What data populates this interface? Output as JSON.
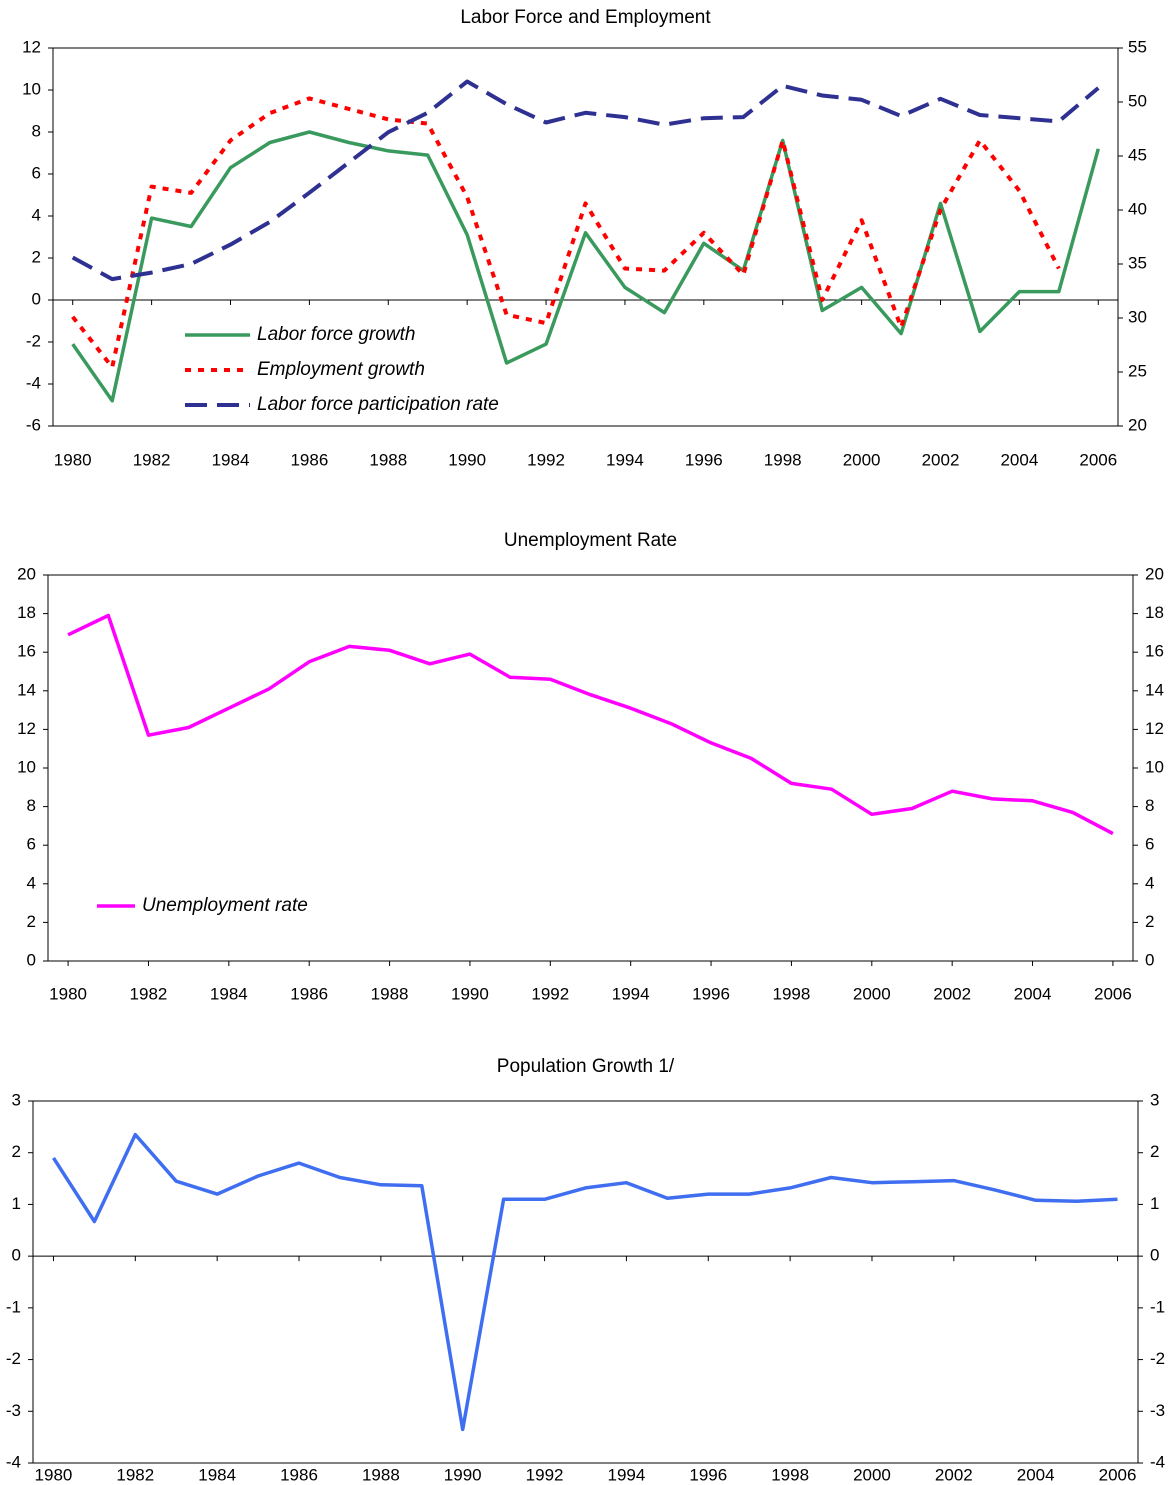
{
  "chart_data": [
    {
      "type": "line",
      "title": "Labor Force and Employment",
      "x": [
        1980,
        1981,
        1982,
        1983,
        1984,
        1985,
        1986,
        1987,
        1988,
        1989,
        1990,
        1991,
        1992,
        1993,
        1994,
        1995,
        1996,
        1997,
        1998,
        1999,
        2000,
        2001,
        2002,
        2003,
        2004,
        2005,
        2006
      ],
      "xlim": [
        1979.5,
        2006.5
      ],
      "xticks": [
        1980,
        1982,
        1984,
        1986,
        1988,
        1990,
        1992,
        1994,
        1996,
        1998,
        2000,
        2002,
        2004,
        2006
      ],
      "ylim": [
        -6,
        12
      ],
      "yticks": [
        -6,
        -4,
        -2,
        0,
        2,
        4,
        6,
        8,
        10,
        12
      ],
      "y2lim": [
        20,
        55
      ],
      "y2ticks": [
        20,
        25,
        30,
        35,
        40,
        45,
        50,
        55
      ],
      "legend": "lower left",
      "series": [
        {
          "name": "Labor force growth",
          "color": "#3a9a5e",
          "style": "solid",
          "values": [
            -2.1,
            -4.8,
            3.9,
            3.5,
            6.3,
            7.5,
            8.0,
            7.5,
            7.1,
            6.9,
            3.1,
            -3.0,
            -2.1,
            3.2,
            0.6,
            -0.6,
            2.7,
            1.4,
            7.6,
            -0.5,
            0.6,
            -1.6,
            4.6,
            -1.5,
            0.4,
            0.4,
            7.2
          ]
        },
        {
          "name": "Employment growth",
          "color": "#ff0000",
          "style": "dotted",
          "values": [
            -0.8,
            -3.2,
            5.4,
            5.1,
            7.6,
            8.9,
            9.6,
            9.1,
            8.6,
            8.4,
            4.9,
            -0.7,
            -1.1,
            4.6,
            1.5,
            1.4,
            3.2,
            1.2,
            7.6,
            0.0,
            3.8,
            -1.3,
            4.3,
            7.6,
            5.2,
            1.5,
            null
          ]
        },
        {
          "name": "Labor force participation rate",
          "color": "#2e3192",
          "style": "dashed",
          "axis": "y2",
          "values": [
            35.6,
            33.6,
            34.2,
            35.0,
            36.8,
            38.9,
            41.6,
            44.4,
            47.2,
            49.0,
            51.9,
            49.8,
            48.1,
            49.0,
            48.6,
            47.9,
            48.5,
            48.6,
            51.5,
            50.6,
            50.2,
            48.7,
            50.3,
            48.8,
            48.5,
            48.2,
            51.3
          ]
        }
      ]
    },
    {
      "type": "line",
      "title": "Unemployment Rate",
      "x": [
        1980,
        1981,
        1982,
        1983,
        1984,
        1985,
        1986,
        1987,
        1988,
        1989,
        1990,
        1991,
        1992,
        1993,
        1994,
        1995,
        1996,
        1997,
        1998,
        1999,
        2000,
        2001,
        2002,
        2003,
        2004,
        2005,
        2006
      ],
      "xlim": [
        1979.5,
        2006.5
      ],
      "xticks": [
        1980,
        1982,
        1984,
        1986,
        1988,
        1990,
        1992,
        1994,
        1996,
        1998,
        2000,
        2002,
        2004,
        2006
      ],
      "ylim": [
        0,
        20
      ],
      "yticks": [
        0,
        2,
        4,
        6,
        8,
        10,
        12,
        14,
        16,
        18,
        20
      ],
      "mirror_y": true,
      "legend": "lower left",
      "series": [
        {
          "name": "Unemployment rate",
          "color": "#ff00ff",
          "style": "solid",
          "values": [
            16.9,
            17.9,
            11.7,
            12.1,
            13.1,
            14.1,
            15.5,
            16.3,
            16.1,
            15.4,
            15.9,
            14.7,
            14.6,
            13.8,
            13.1,
            12.3,
            11.3,
            10.5,
            9.2,
            8.9,
            7.6,
            7.9,
            8.8,
            8.4,
            8.3,
            7.7,
            6.6
          ]
        }
      ]
    },
    {
      "type": "line",
      "title": "Population Growth 1/",
      "x": [
        1980,
        1981,
        1982,
        1983,
        1984,
        1985,
        1986,
        1987,
        1988,
        1989,
        1990,
        1991,
        1992,
        1993,
        1994,
        1995,
        1996,
        1997,
        1998,
        1999,
        2000,
        2001,
        2002,
        2003,
        2004,
        2005,
        2006
      ],
      "xlim": [
        1979.5,
        2006.5
      ],
      "xticks": [
        1980,
        1982,
        1984,
        1986,
        1988,
        1990,
        1992,
        1994,
        1996,
        1998,
        2000,
        2002,
        2004,
        2006
      ],
      "ylim": [
        -4,
        3
      ],
      "yticks": [
        -4,
        -3,
        -2,
        -1,
        0,
        1,
        2,
        3
      ],
      "mirror_y": true,
      "series": [
        {
          "color": "#3f6ef0",
          "style": "solid",
          "values": [
            1.9,
            0.67,
            2.35,
            1.45,
            1.2,
            1.55,
            1.8,
            1.52,
            1.38,
            1.36,
            -3.35,
            1.1,
            1.1,
            1.32,
            1.42,
            1.12,
            1.2,
            1.2,
            1.32,
            1.52,
            1.42,
            1.44,
            1.46,
            1.28,
            1.08,
            1.06,
            1.1
          ]
        }
      ]
    }
  ]
}
